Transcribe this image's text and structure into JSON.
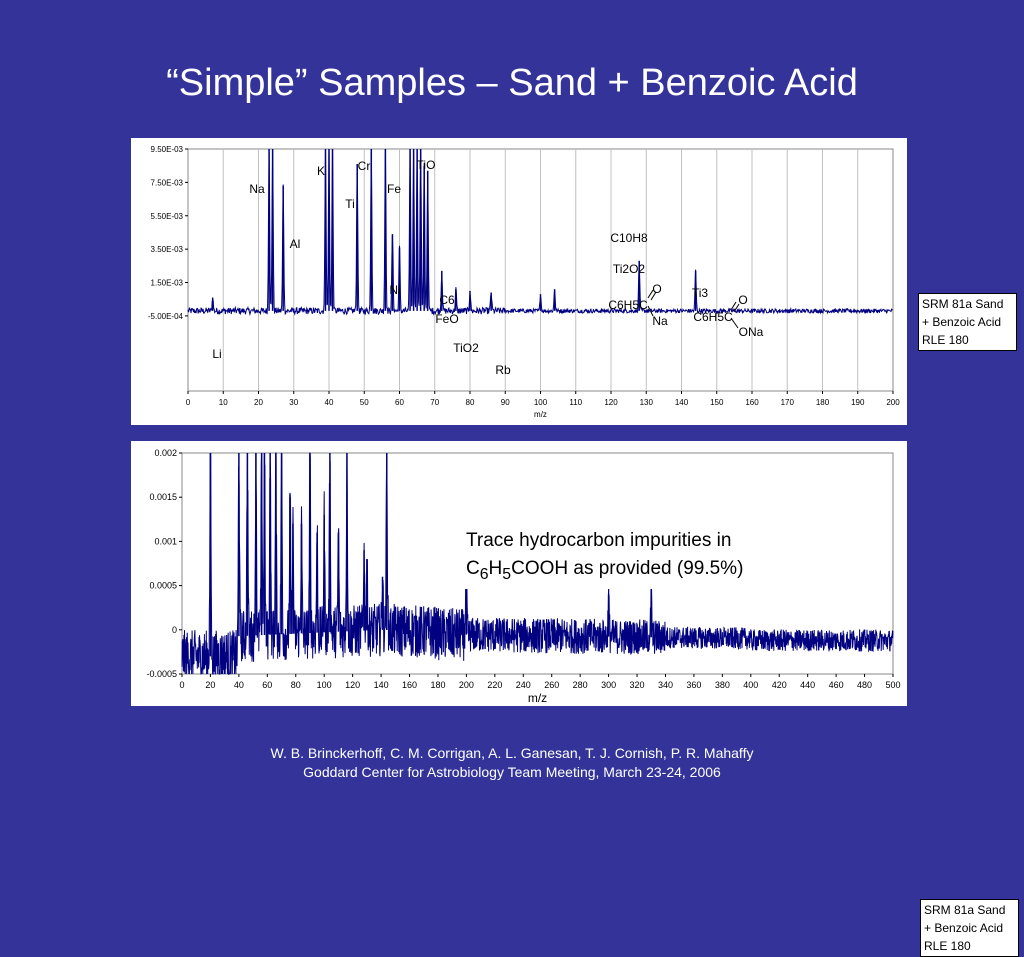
{
  "slide": {
    "title": "“Simple” Samples – Sand + Benzoic Acid",
    "credit_line1": "W. B. Brinckerhoff, C. M. Corrigan, A. L. Ganesan, T. J. Cornish, P. R. Mahaffy",
    "credit_line2": "Goddard Center for Astrobiology Team Meeting, March 23-24, 2006"
  },
  "chart_data": [
    {
      "type": "line",
      "xlabel": "m/z",
      "ylabel": "",
      "xlim": [
        0,
        200
      ],
      "ylim": [
        -0.005,
        0.0095
      ],
      "x_ticks": [
        "0",
        "10",
        "20",
        "30",
        "40",
        "50",
        "60",
        "70",
        "80",
        "90",
        "100",
        "110",
        "120",
        "130",
        "140",
        "150",
        "160",
        "170",
        "180",
        "190",
        "200"
      ],
      "y_ticks": [
        "9.50E-03",
        "7.50E-03",
        "5.50E-03",
        "3.50E-03",
        "1.50E-03",
        "-5.00E-04"
      ],
      "y_tick_values": [
        0.0095,
        0.0075,
        0.0055,
        0.0035,
        0.0015,
        -0.0005
      ],
      "legend_lines": [
        "SRM 81a Sand",
        "+ Benzoic Acid",
        "RLE 180"
      ],
      "grid": "vertical",
      "line_color": "#000080",
      "peaks": [
        {
          "x": 7,
          "y": 0.0006
        },
        {
          "x": 23,
          "y": 0.0095
        },
        {
          "x": 24,
          "y": 0.0095
        },
        {
          "x": 27,
          "y": 0.0073
        },
        {
          "x": 39,
          "y": 0.0095
        },
        {
          "x": 40,
          "y": 0.0095
        },
        {
          "x": 41,
          "y": 0.0095
        },
        {
          "x": 48,
          "y": 0.0086
        },
        {
          "x": 52,
          "y": 0.0095
        },
        {
          "x": 56,
          "y": 0.0095
        },
        {
          "x": 58,
          "y": 0.0044
        },
        {
          "x": 60,
          "y": 0.0036
        },
        {
          "x": 63,
          "y": 0.0095
        },
        {
          "x": 64,
          "y": 0.0095
        },
        {
          "x": 65,
          "y": 0.0095
        },
        {
          "x": 66,
          "y": 0.0095
        },
        {
          "x": 67,
          "y": 0.0085
        },
        {
          "x": 68,
          "y": 0.0082
        },
        {
          "x": 72,
          "y": 0.0022
        },
        {
          "x": 76,
          "y": 0.0011
        },
        {
          "x": 80,
          "y": 0.001
        },
        {
          "x": 86,
          "y": 0.0009
        },
        {
          "x": 100,
          "y": 0.0008
        },
        {
          "x": 104,
          "y": 0.0011
        },
        {
          "x": 128,
          "y": 0.0028
        },
        {
          "x": 144,
          "y": 0.0022
        }
      ],
      "peak_labels": [
        {
          "x": 7,
          "text": "Li"
        },
        {
          "x": 19,
          "text": "Na"
        },
        {
          "x": 30,
          "text": "Al"
        },
        {
          "x": 38,
          "text": "K"
        },
        {
          "x": 46,
          "text": "Ti"
        },
        {
          "x": 50,
          "text": "Cr"
        },
        {
          "x": 58,
          "text": "Ni"
        },
        {
          "x": 59,
          "text": "Fe"
        },
        {
          "x": 68,
          "text": "TiO"
        },
        {
          "x": 74,
          "text": "C6"
        },
        {
          "x": 74,
          "text": "FeO"
        },
        {
          "x": 79,
          "text": "TiO2"
        },
        {
          "x": 89,
          "text": "Rb"
        },
        {
          "x": 126,
          "text": "C10H8"
        },
        {
          "x": 126,
          "text": "Ti2O2"
        },
        {
          "x": 145,
          "text": "Ti3"
        }
      ],
      "structure_labels": [
        {
          "text": "C6H5C",
          "substituent": "Na"
        },
        {
          "text": "C6H5C",
          "substituent": "ONa"
        }
      ]
    },
    {
      "type": "line",
      "xlabel": "m/z",
      "ylabel": "",
      "xlim": [
        0,
        500
      ],
      "ylim": [
        -0.0005,
        0.002
      ],
      "x_ticks": [
        "0",
        "20",
        "40",
        "60",
        "80",
        "100",
        "120",
        "140",
        "160",
        "180",
        "200",
        "220",
        "240",
        "260",
        "280",
        "300",
        "320",
        "340",
        "360",
        "380",
        "400",
        "420",
        "440",
        "460",
        "480",
        "500"
      ],
      "y_ticks": [
        "0.002",
        "0.0015",
        "0.001",
        "0.0005",
        "0",
        "-0.0005"
      ],
      "y_tick_values": [
        0.002,
        0.0015,
        0.001,
        0.0005,
        0,
        -0.0005
      ],
      "legend_lines": [
        "SRM 81a Sand",
        "+ Benzoic Acid",
        "RLE 180"
      ],
      "annotation_line1": "Trace hydrocarbon impurities in",
      "annotation_line2": "COOH as provided (99.5%)",
      "annotation_formula": {
        "c": "C",
        "c_sub": "6",
        "h": "H",
        "h_sub": "5"
      },
      "line_color": "#000080",
      "peaks": [
        {
          "x": 20,
          "y": 0.002
        },
        {
          "x": 40,
          "y": 0.002
        },
        {
          "x": 46,
          "y": 0.002
        },
        {
          "x": 52,
          "y": 0.002
        },
        {
          "x": 56,
          "y": 0.002
        },
        {
          "x": 58,
          "y": 0.002
        },
        {
          "x": 62,
          "y": 0.002
        },
        {
          "x": 66,
          "y": 0.002
        },
        {
          "x": 70,
          "y": 0.002
        },
        {
          "x": 76,
          "y": 0.0015
        },
        {
          "x": 78,
          "y": 0.0012
        },
        {
          "x": 84,
          "y": 0.0012
        },
        {
          "x": 90,
          "y": 0.002
        },
        {
          "x": 95,
          "y": 0.0011
        },
        {
          "x": 100,
          "y": 0.0013
        },
        {
          "x": 104,
          "y": 0.002
        },
        {
          "x": 110,
          "y": 0.0011
        },
        {
          "x": 116,
          "y": 0.002
        },
        {
          "x": 128,
          "y": 0.0009
        },
        {
          "x": 130,
          "y": 0.0008
        },
        {
          "x": 141,
          "y": 0.0006
        },
        {
          "x": 144,
          "y": 0.002
        },
        {
          "x": 200,
          "y": 0.0006
        },
        {
          "x": 300,
          "y": 0.0004
        },
        {
          "x": 330,
          "y": 0.0004
        }
      ]
    }
  ]
}
